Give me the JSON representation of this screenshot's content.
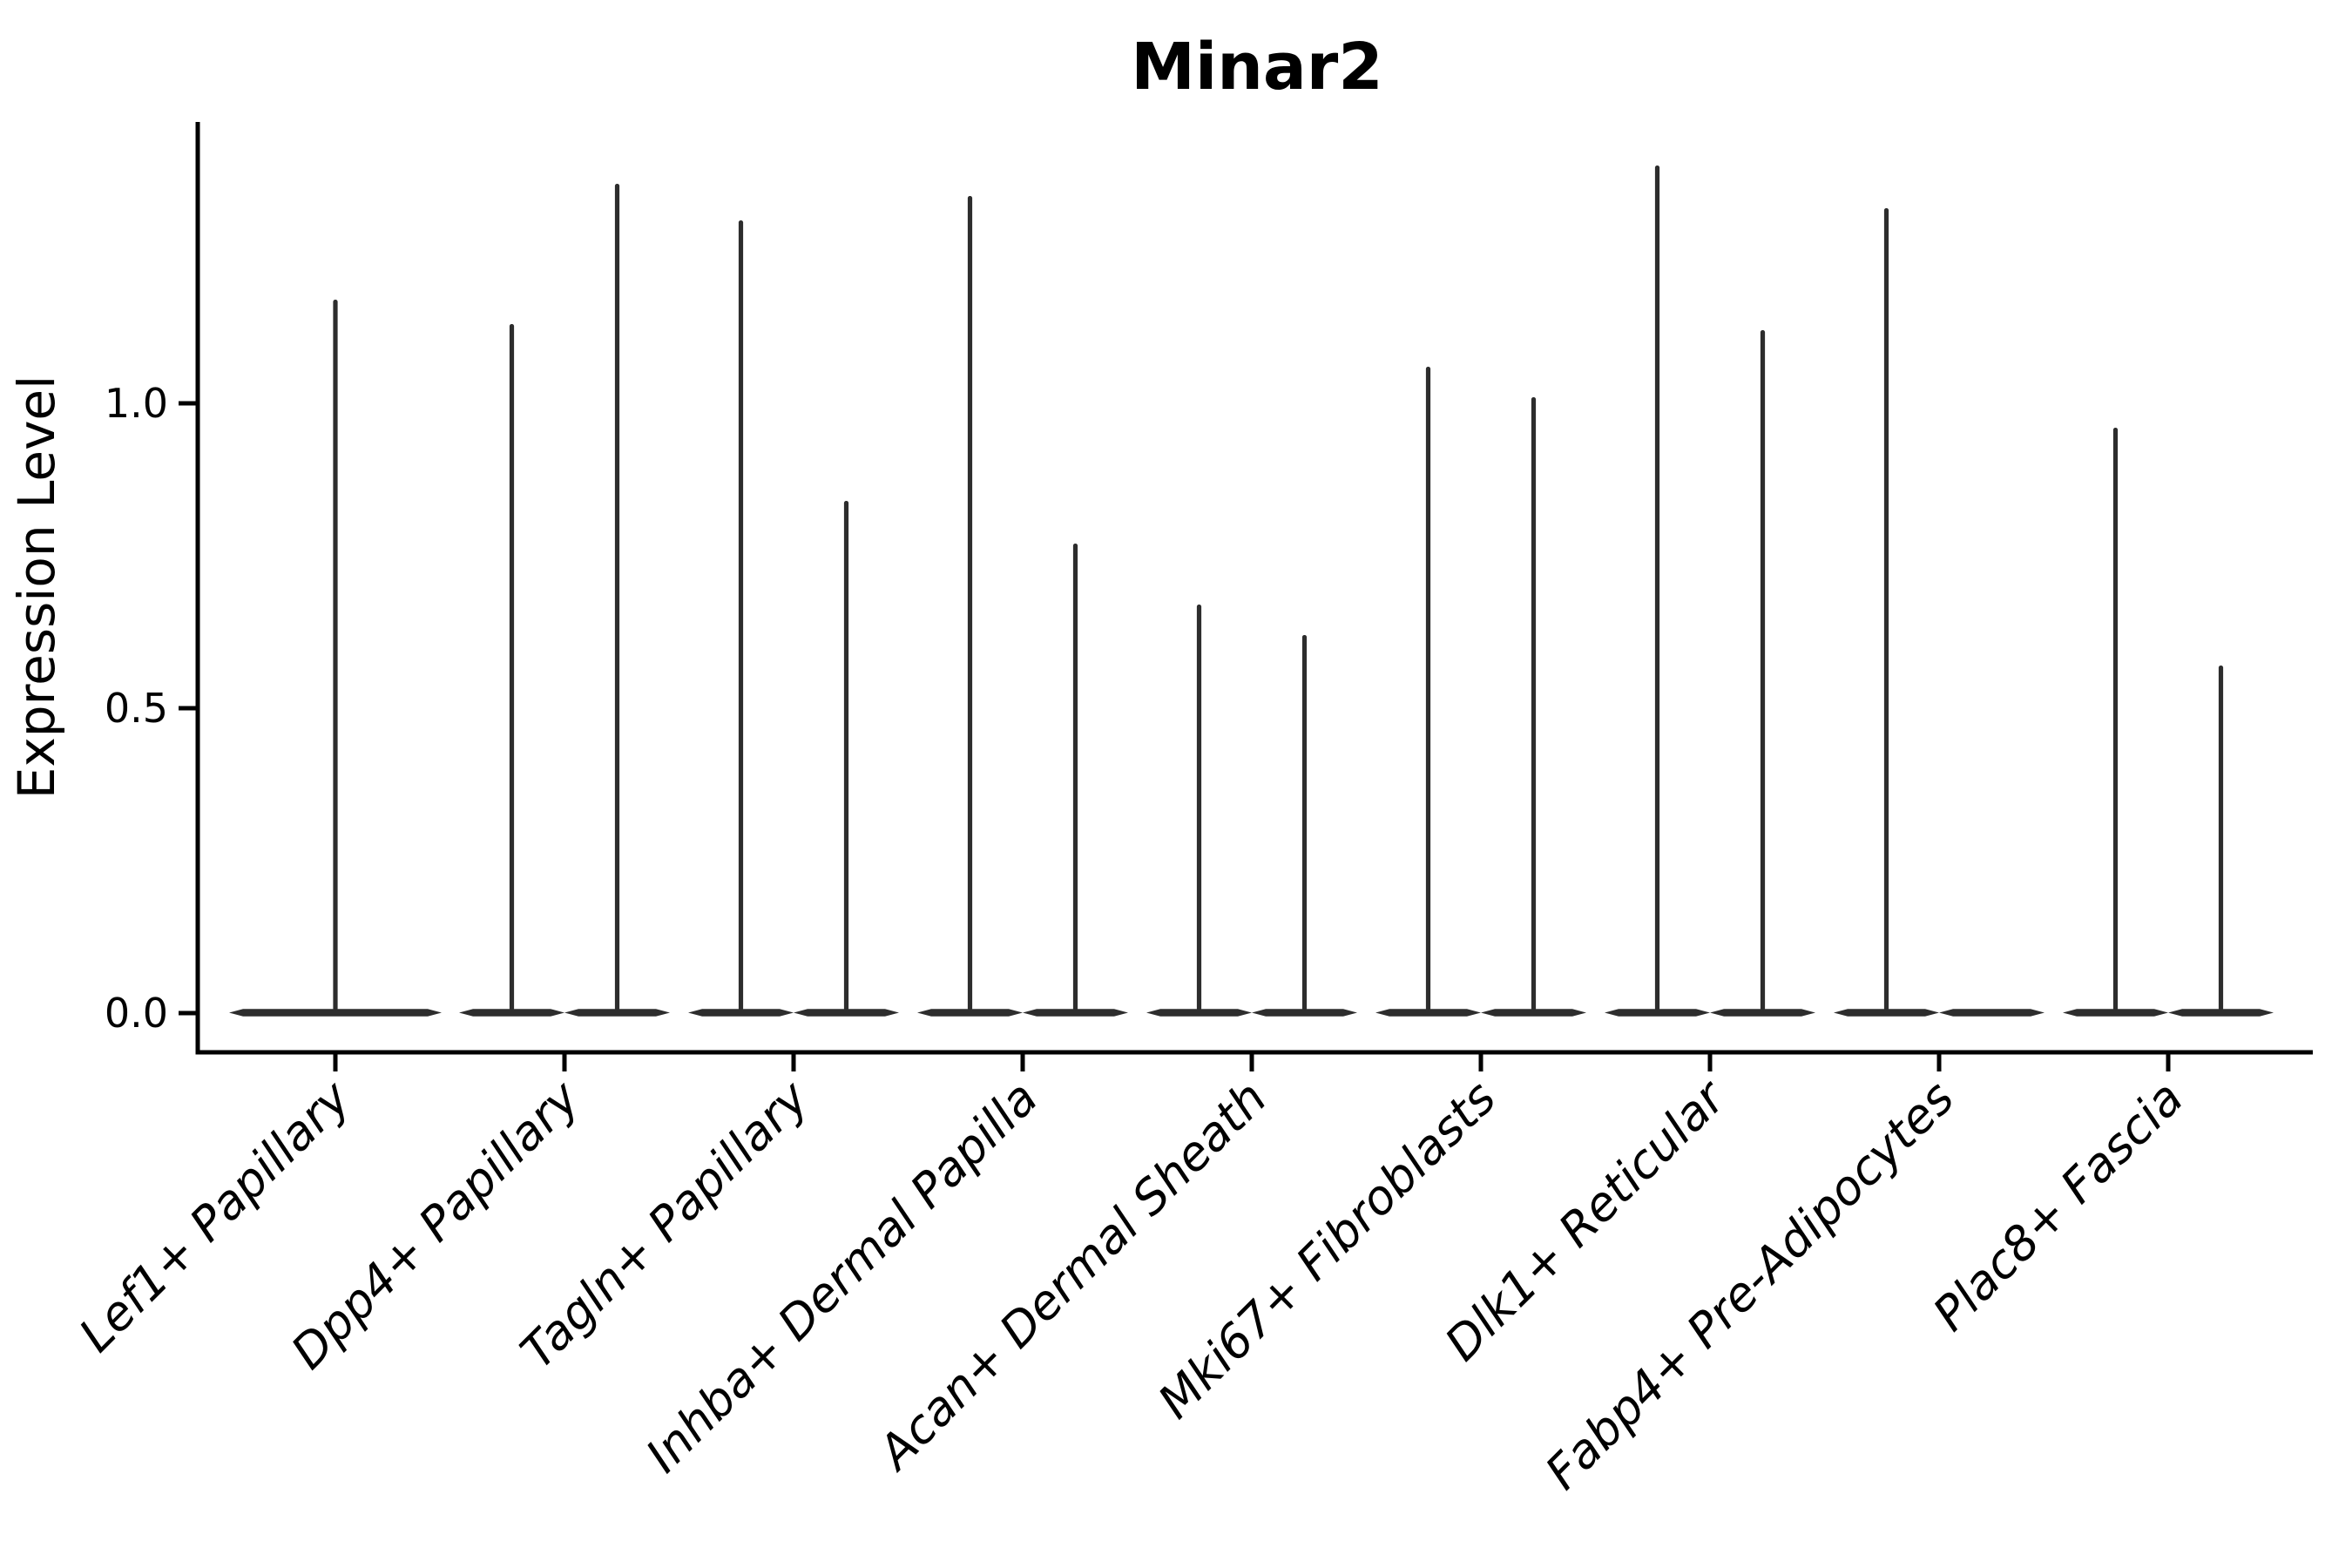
{
  "chart_data": {
    "type": "violin",
    "title": "Minar2",
    "xlabel": "",
    "ylabel": "Expression Level",
    "ytick_labels": [
      "0.0",
      "0.5",
      "1.0"
    ],
    "ytick_values": [
      0.0,
      0.5,
      1.0
    ],
    "ylim": [
      -0.06,
      1.46
    ],
    "grid": false,
    "legend": "none",
    "description": "Split violin plot: each violin is a wide flat lens at expression 0 with a thin vertical spike reaching its maximum expression value. 'max' is the top of each spike in Expression Level units; a max of 0 means a flat violin with no spike.",
    "categories": [
      {
        "label": "Lef1+ Papillary",
        "violins": [
          {
            "pos": "center",
            "max": 1.17
          }
        ]
      },
      {
        "label": "Dpp4+ Papillary",
        "violins": [
          {
            "pos": "left",
            "max": 1.13
          },
          {
            "pos": "right",
            "max": 1.36
          }
        ]
      },
      {
        "label": "Tagln+ Papillary",
        "violins": [
          {
            "pos": "left",
            "max": 1.3
          },
          {
            "pos": "right",
            "max": 0.84
          }
        ]
      },
      {
        "label": "Inhba+ Dermal Papilla",
        "violins": [
          {
            "pos": "left",
            "max": 1.34
          },
          {
            "pos": "right",
            "max": 0.77
          }
        ]
      },
      {
        "label": "Acan+ Dermal Sheath",
        "violins": [
          {
            "pos": "left",
            "max": 0.67
          },
          {
            "pos": "right",
            "max": 0.62
          }
        ]
      },
      {
        "label": "Mki67+ Fibroblasts",
        "violins": [
          {
            "pos": "left",
            "max": 1.06
          },
          {
            "pos": "right",
            "max": 1.01
          }
        ]
      },
      {
        "label": "Dlk1+ Reticular",
        "violins": [
          {
            "pos": "left",
            "max": 1.39
          },
          {
            "pos": "right",
            "max": 1.12
          }
        ]
      },
      {
        "label": "Fabp4+ Pre-Adipocytes",
        "violins": [
          {
            "pos": "left",
            "max": 1.32
          },
          {
            "pos": "right",
            "max": 0.0
          }
        ]
      },
      {
        "label": "Plac8+ Fascia",
        "violins": [
          {
            "pos": "left",
            "max": 0.96
          },
          {
            "pos": "right",
            "max": 0.57
          }
        ]
      }
    ],
    "colors": {
      "violin_fill": "#2d2d2d",
      "axis": "#000000",
      "text": "#000000",
      "background": "#ffffff"
    }
  }
}
